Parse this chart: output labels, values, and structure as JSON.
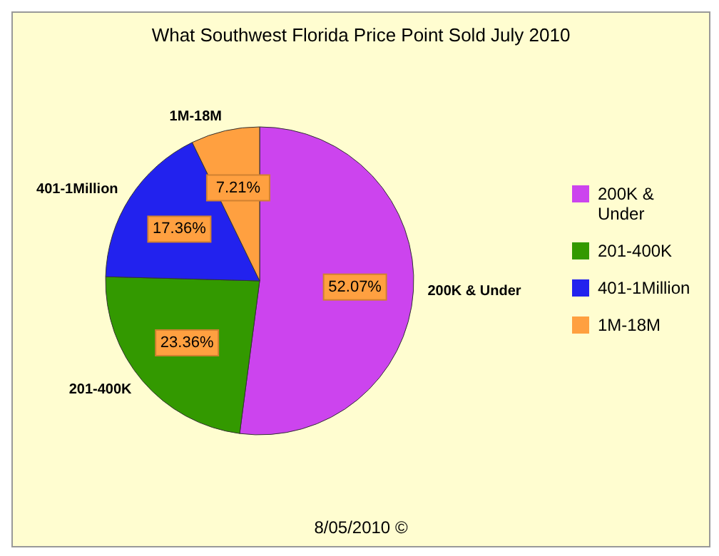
{
  "chart_data": {
    "type": "pie",
    "title": "What Southwest Florida Price Point Sold July 2010",
    "categories": [
      "200K & Under",
      "201-400K",
      "401-1Million",
      "1M-18M"
    ],
    "values": [
      52.07,
      23.36,
      17.36,
      7.21
    ],
    "value_labels": [
      "52.07%",
      "23.36%",
      "17.36%",
      "7.21%"
    ],
    "colors": [
      "#cc44ee",
      "#339900",
      "#2222ee",
      "#ffa040"
    ],
    "legend": "right",
    "annotations": [
      "8/05/2010 ©"
    ]
  }
}
